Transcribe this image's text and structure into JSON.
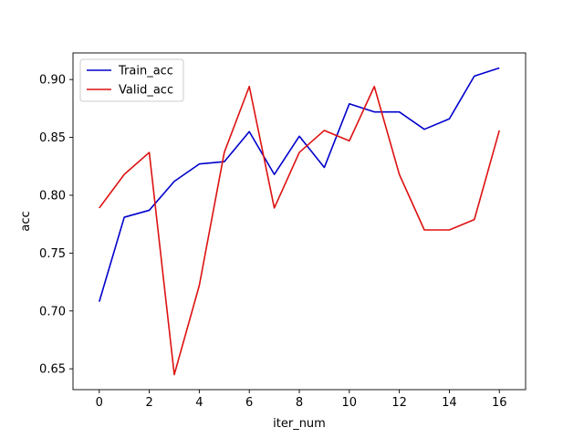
{
  "chart_data": {
    "type": "line",
    "xlabel": "iter_num",
    "ylabel": "acc",
    "x": [
      0,
      1,
      2,
      3,
      4,
      5,
      6,
      7,
      8,
      9,
      10,
      11,
      12,
      13,
      14,
      15,
      16
    ],
    "xlim": [
      -1.05,
      17.05
    ],
    "ylim": [
      0.632,
      0.923
    ],
    "xticks": [
      0,
      2,
      4,
      6,
      8,
      10,
      12,
      14,
      16
    ],
    "yticks": [
      0.65,
      0.7,
      0.75,
      0.8,
      0.85,
      0.9
    ],
    "ytick_labels": [
      "0.65",
      "0.70",
      "0.75",
      "0.80",
      "0.85",
      "0.90"
    ],
    "grid": false,
    "legend_position": "upper-left",
    "series": [
      {
        "name": "Train_acc",
        "color": "#0000cc",
        "values": [
          0.708,
          0.781,
          0.787,
          0.812,
          0.827,
          0.829,
          0.855,
          0.818,
          0.851,
          0.824,
          0.879,
          0.872,
          0.872,
          0.857,
          0.866,
          0.903,
          0.91
        ]
      },
      {
        "name": "Valid_acc",
        "color": "#dd1111",
        "values": [
          0.789,
          0.818,
          0.837,
          0.645,
          0.722,
          0.837,
          0.894,
          0.789,
          0.837,
          0.856,
          0.847,
          0.894,
          0.818,
          0.77,
          0.77,
          0.779,
          0.856
        ]
      }
    ]
  }
}
